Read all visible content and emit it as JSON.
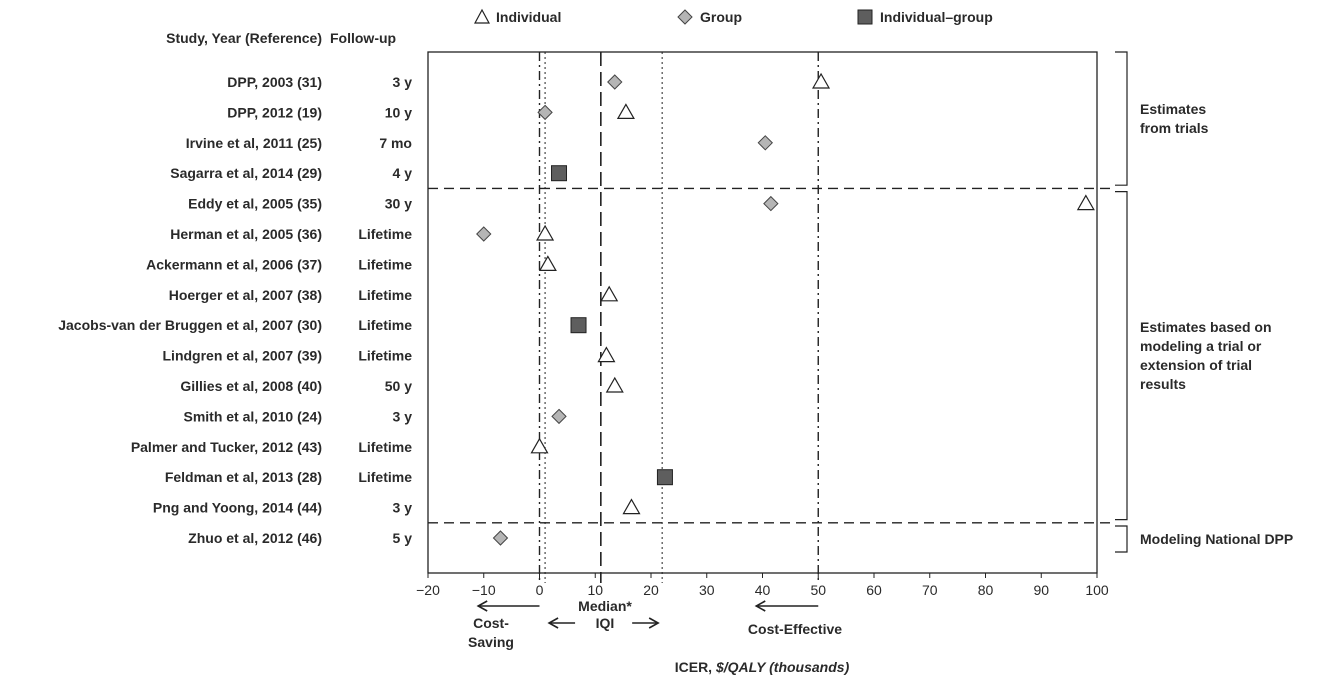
{
  "chart_data": {
    "type": "scatter",
    "columns": {
      "study": "Study, Year (Reference)",
      "followup": "Follow-up"
    },
    "legend": [
      {
        "name": "Individual",
        "marker": "triangle",
        "color": "#ffffff"
      },
      {
        "name": "Group",
        "marker": "diamond",
        "color": "#b5b5b5"
      },
      {
        "name": "Individual–group",
        "marker": "square",
        "color": "#5e5e5e"
      }
    ],
    "rows": [
      {
        "study": "DPP, 2003 (31)",
        "followup": "3 y"
      },
      {
        "study": "DPP, 2012 (19)",
        "followup": "10 y"
      },
      {
        "study": "Irvine et al, 2011 (25)",
        "followup": "7 mo"
      },
      {
        "study": "Sagarra et al, 2014 (29)",
        "followup": "4 y"
      },
      {
        "study": "Eddy et al, 2005 (35)",
        "followup": "30 y"
      },
      {
        "study": "Herman et al, 2005 (36)",
        "followup": "Lifetime"
      },
      {
        "study": "Ackermann et al, 2006 (37)",
        "followup": "Lifetime"
      },
      {
        "study": "Hoerger et al, 2007 (38)",
        "followup": "Lifetime"
      },
      {
        "study": "Jacobs-van der Bruggen et al, 2007 (30)",
        "followup": "Lifetime"
      },
      {
        "study": "Lindgren et al, 2007 (39)",
        "followup": "Lifetime"
      },
      {
        "study": "Gillies et al, 2008 (40)",
        "followup": "50 y"
      },
      {
        "study": "Smith et al, 2010 (24)",
        "followup": "3 y"
      },
      {
        "study": "Palmer and Tucker, 2012 (43)",
        "followup": "Lifetime"
      },
      {
        "study": "Feldman et al, 2013 (28)",
        "followup": "Lifetime"
      },
      {
        "study": "Png and Yoong, 2014 (44)",
        "followup": "3 y"
      },
      {
        "study": "Zhuo et al, 2012 (46)",
        "followup": "5 y"
      }
    ],
    "points": [
      {
        "row": 0,
        "type": "Individual",
        "x": 50.5
      },
      {
        "row": 0,
        "type": "Group",
        "x": 13.5
      },
      {
        "row": 1,
        "type": "Individual",
        "x": 15.5
      },
      {
        "row": 1,
        "type": "Group",
        "x": 1.0
      },
      {
        "row": 2,
        "type": "Group",
        "x": 40.5
      },
      {
        "row": 3,
        "type": "Individual–group",
        "x": 3.5
      },
      {
        "row": 4,
        "type": "Individual",
        "x": 98.0
      },
      {
        "row": 4,
        "type": "Group",
        "x": 41.5
      },
      {
        "row": 5,
        "type": "Individual",
        "x": 1.0
      },
      {
        "row": 5,
        "type": "Group",
        "x": -10.0
      },
      {
        "row": 6,
        "type": "Individual",
        "x": 1.5
      },
      {
        "row": 7,
        "type": "Individual",
        "x": 12.5
      },
      {
        "row": 8,
        "type": "Individual–group",
        "x": 7.0
      },
      {
        "row": 9,
        "type": "Individual",
        "x": 12.0
      },
      {
        "row": 10,
        "type": "Individual",
        "x": 13.5
      },
      {
        "row": 11,
        "type": "Group",
        "x": 3.5
      },
      {
        "row": 12,
        "type": "Individual",
        "x": 0.0
      },
      {
        "row": 13,
        "type": "Individual–group",
        "x": 22.5
      },
      {
        "row": 14,
        "type": "Individual",
        "x": 16.5
      },
      {
        "row": 15,
        "type": "Group",
        "x": -7.0
      }
    ],
    "xlim": [
      -20,
      100
    ],
    "xticks": [
      -20,
      -10,
      0,
      10,
      20,
      30,
      40,
      50,
      60,
      70,
      80,
      90,
      100
    ],
    "xlabel": "ICER, $/QALY (thousands)",
    "xlabel_parts": [
      "ICER, ",
      "$/QALY (thousands)"
    ],
    "reference_lines": {
      "cost_saving_x": 0,
      "median_x": 11,
      "iqi": [
        1,
        22
      ],
      "cost_effective_x": 50
    },
    "group_separators_after_rows": [
      3,
      14
    ],
    "groups": [
      {
        "label_lines": [
          "Estimates",
          "from trials"
        ],
        "from_row": 0,
        "to_row": 3
      },
      {
        "label_lines": [
          "Estimates based on",
          "modeling a trial or",
          "extension of trial",
          "results"
        ],
        "from_row": 4,
        "to_row": 14
      },
      {
        "label_lines": [
          "Modeling National DPP"
        ],
        "from_row": 15,
        "to_row": 15
      }
    ],
    "annotations": {
      "cost_saving": [
        "Cost-",
        "Saving"
      ],
      "median": "Median*",
      "iqi": "IQI",
      "cost_effective": "Cost-Effective"
    }
  }
}
